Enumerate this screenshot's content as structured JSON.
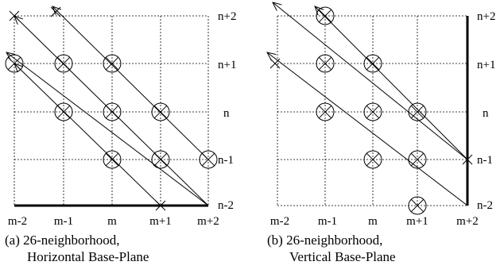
{
  "panels": [
    {
      "id": "a",
      "x_labels": [
        "m-2",
        "m-1",
        "m",
        "m+1",
        "m+2"
      ],
      "y_labels": [
        "n+2",
        "n+1",
        "n",
        "n-1",
        "n-2"
      ],
      "caption_line1": "(a) 26-neighborhood,",
      "caption_line2": "Horizontal Base-Plane",
      "base_plane": "horizontal"
    },
    {
      "id": "b",
      "x_labels": [
        "m-2",
        "m-1",
        "m",
        "m+1",
        "m+2"
      ],
      "y_labels": [
        "n+2",
        "n+1",
        "n",
        "n-1",
        "n-2"
      ],
      "caption_line1": "(b) 26-neighborhood,",
      "caption_line2": "Vertical Base-Plane",
      "base_plane": "vertical"
    }
  ],
  "legend_symbols": {
    "voxel_marker": "circled-cross-icon",
    "intersection_marker": "cross-icon",
    "direction": "arrow-icon"
  }
}
